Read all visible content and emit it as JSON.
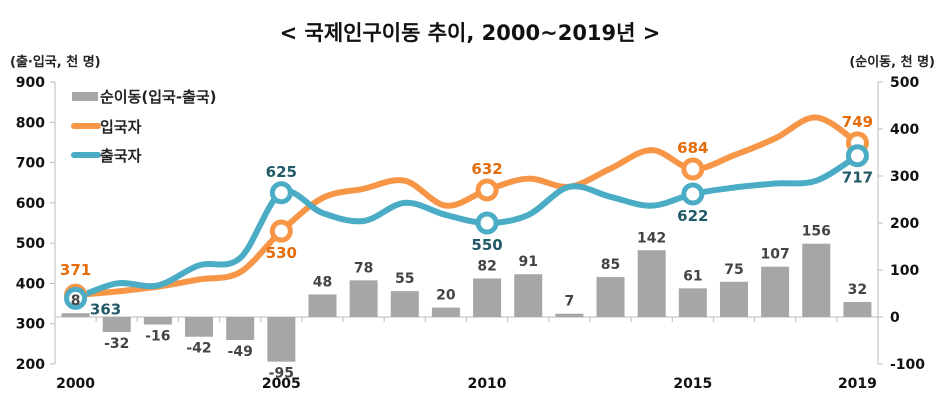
{
  "chart_data": {
    "type": "bar+line",
    "title": "< 국제인구이동 추이, 2000~2019년 >",
    "left_axis_label": "(출·입국, 천 명)",
    "right_axis_label": "(순이동, 천 명)",
    "left_ylim": [
      200,
      900
    ],
    "left_ticks": [
      "200",
      "300",
      "400",
      "500",
      "600",
      "700",
      "800",
      "900"
    ],
    "right_ylim": [
      -100,
      500
    ],
    "right_ticks": [
      "-100",
      "0",
      "100",
      "200",
      "300",
      "400",
      "500"
    ],
    "x": [
      2000,
      2001,
      2002,
      2003,
      2004,
      2005,
      2006,
      2007,
      2008,
      2009,
      2010,
      2011,
      2012,
      2013,
      2014,
      2015,
      2016,
      2017,
      2018,
      2019
    ],
    "x_tick_labels": [
      "2000",
      "2005",
      "2010",
      "2015",
      "2019"
    ],
    "legend_position": "top-left",
    "grid": false,
    "series": [
      {
        "name": "순이동(입국-출국)",
        "kind": "bar",
        "axis": "right",
        "color": "#a6a6a6",
        "values": [
          8,
          -32,
          -16,
          -42,
          -49,
          -95,
          48,
          78,
          55,
          20,
          82,
          91,
          7,
          85,
          142,
          61,
          75,
          107,
          156,
          32
        ],
        "labels": [
          "8",
          "-32",
          "-16",
          "-42",
          "-49",
          "-95",
          "48",
          "78",
          "55",
          "20",
          "82",
          "91",
          "7",
          "85",
          "142",
          "61",
          "75",
          "107",
          "156",
          "32"
        ]
      },
      {
        "name": "입국자",
        "kind": "line",
        "axis": "left",
        "color": "#f79646",
        "label_color": "#e46c0a",
        "values": [
          371,
          380,
          392,
          410,
          428,
          530,
          612,
          635,
          655,
          593,
          632,
          660,
          640,
          685,
          731,
          684,
          718,
          760,
          812,
          749
        ],
        "point_labels": {
          "2000": "371",
          "2005": "530",
          "2010": "632",
          "2015": "684",
          "2019": "749"
        }
      },
      {
        "name": "출국자",
        "kind": "line",
        "axis": "left",
        "color": "#4bacc6",
        "label_color": "#215967",
        "values": [
          363,
          400,
          395,
          445,
          463,
          625,
          575,
          555,
          600,
          570,
          550,
          570,
          640,
          615,
          593,
          622,
          638,
          648,
          655,
          717
        ],
        "point_labels": {
          "2000": "363",
          "2005": "625",
          "2010": "550",
          "2015": "622",
          "2019": "717"
        }
      }
    ]
  }
}
